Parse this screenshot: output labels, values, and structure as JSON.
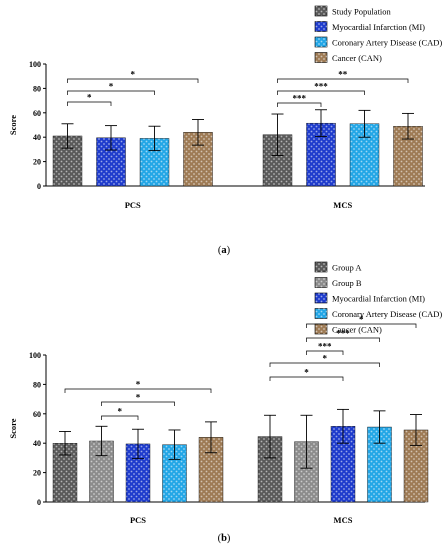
{
  "chart_data": [
    {
      "type": "bar",
      "caption": "(a)",
      "caption_bold": "a",
      "ylabel": "Score",
      "ylim": [
        0,
        100
      ],
      "yticks": [
        0,
        20,
        40,
        60,
        80,
        100
      ],
      "categories": [
        "PCS",
        "MCS"
      ],
      "series": [
        {
          "name": "Study Population",
          "color": "#5a5a5a",
          "values": [
            41,
            42
          ],
          "errors": [
            10,
            17
          ]
        },
        {
          "name": "Myocardial Infarction (MI)",
          "color": "#1f3ccc",
          "values": [
            39.5,
            51.5
          ],
          "errors": [
            10,
            11
          ]
        },
        {
          "name": "Coronary Artery Disease (CAD)",
          "color": "#23a6e6",
          "values": [
            39,
            51
          ],
          "errors": [
            10,
            11
          ]
        },
        {
          "name": "Cancer (CAN)",
          "color": "#9e7b55",
          "values": [
            44,
            49
          ],
          "errors": [
            10.5,
            10.5
          ]
        }
      ],
      "significance": [
        {
          "group": 0,
          "from": 0,
          "to": 1,
          "label": "*"
        },
        {
          "group": 0,
          "from": 0,
          "to": 2,
          "label": "*"
        },
        {
          "group": 0,
          "from": 0,
          "to": 3,
          "label": "*"
        },
        {
          "group": 1,
          "from": 0,
          "to": 1,
          "label": "***"
        },
        {
          "group": 1,
          "from": 0,
          "to": 2,
          "label": "***"
        },
        {
          "group": 1,
          "from": 0,
          "to": 3,
          "label": "**"
        }
      ]
    },
    {
      "type": "bar",
      "caption": "(b)",
      "caption_bold": "b",
      "ylabel": "Score",
      "ylim": [
        0,
        100
      ],
      "yticks": [
        0,
        20,
        40,
        60,
        80,
        100
      ],
      "categories": [
        "PCS",
        "MCS"
      ],
      "series": [
        {
          "name": "Group A",
          "color": "#5a5a5a",
          "values": [
            40,
            44.5
          ],
          "errors": [
            8,
            14.5
          ]
        },
        {
          "name": "Group B",
          "color": "#8c8c8c",
          "values": [
            41.5,
            41
          ],
          "errors": [
            10,
            18
          ]
        },
        {
          "name": "Myocardial Infarction (MI)",
          "color": "#1f3ccc",
          "values": [
            39.5,
            51.5
          ],
          "errors": [
            10,
            11.5
          ]
        },
        {
          "name": "Coronary Artery Disease (CAD)",
          "color": "#23a6e6",
          "values": [
            39,
            51
          ],
          "errors": [
            10,
            11
          ]
        },
        {
          "name": "Cancer (CAN)",
          "color": "#9e7b55",
          "values": [
            44,
            49
          ],
          "errors": [
            10.5,
            10.5
          ]
        }
      ],
      "significance": [
        {
          "group": 0,
          "from": 1,
          "to": 2,
          "label": "*"
        },
        {
          "group": 0,
          "from": 1,
          "to": 3,
          "label": "*"
        },
        {
          "group": 0,
          "from": 0,
          "to": 4,
          "label": "*"
        },
        {
          "group": 1,
          "from": 0,
          "to": 2,
          "label": "*"
        },
        {
          "group": 1,
          "from": 0,
          "to": 3,
          "label": "*"
        },
        {
          "group": 1,
          "from": 1,
          "to": 2,
          "label": "***"
        },
        {
          "group": 1,
          "from": 1,
          "to": 3,
          "label": "***"
        },
        {
          "group": 1,
          "from": 1,
          "to": 4,
          "label": "*"
        }
      ]
    }
  ]
}
